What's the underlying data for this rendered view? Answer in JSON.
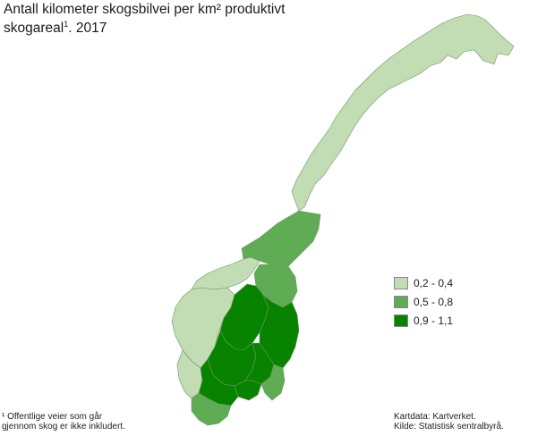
{
  "title": {
    "line1": "Antall kilometer skogsbilvei per km² produktivt",
    "line2_prefix": "skogareal",
    "line2_sup": "1",
    "line2_suffix": ". 2017"
  },
  "legend": [
    {
      "label": "0,2 - 0,4",
      "color": "#c2dcb4"
    },
    {
      "label": "0,5 - 0,8",
      "color": "#60ac55"
    },
    {
      "label": "0,9 - 1,1",
      "color": "#078300"
    }
  ],
  "footnote": {
    "line1": "¹ Offentlige veier som går",
    "line2": "gjennom skog er ikke inkludert."
  },
  "source": {
    "line1": "Kartdata: Kartverket.",
    "line2": "Kilde: Statistisk sentralbyrå."
  },
  "colors": {
    "low": "#c2dcb4",
    "mid": "#60ac55",
    "high": "#078300",
    "border": "#5a8a4e"
  }
}
